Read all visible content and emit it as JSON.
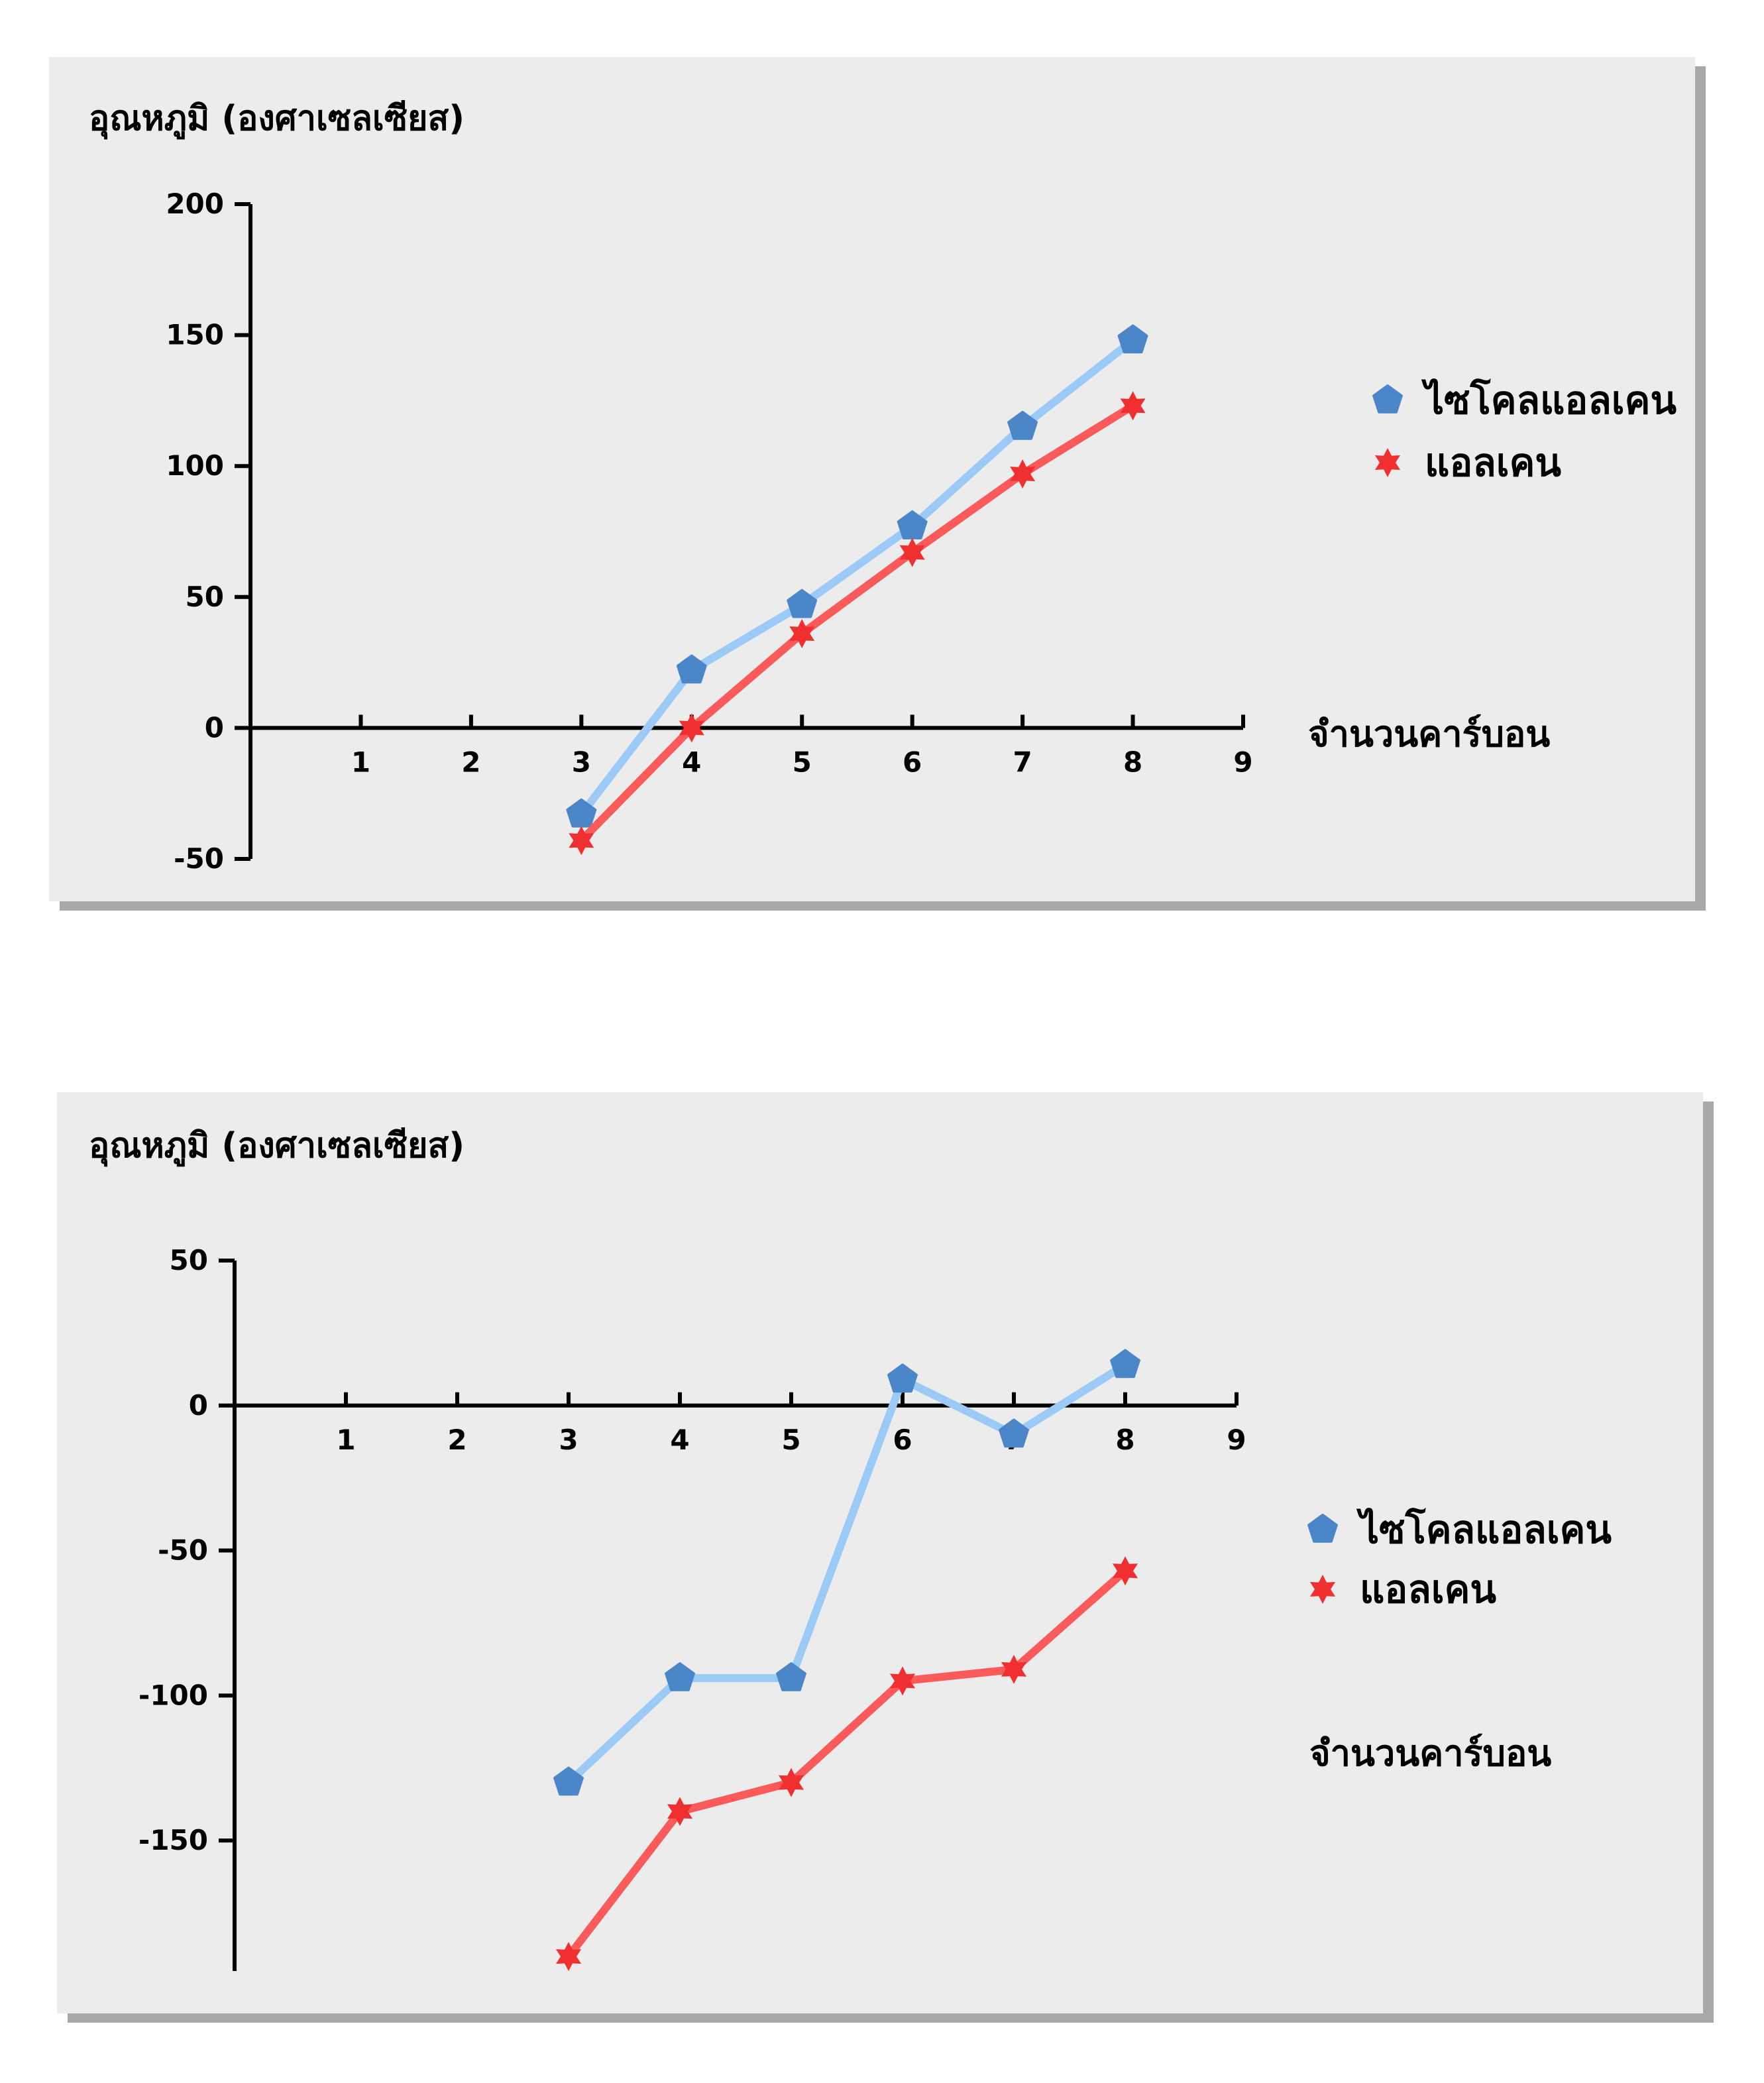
{
  "colors": {
    "panel_bg": "#ececec",
    "shadow": "#a9a9a9",
    "cyclo_line": "#9ccaf7",
    "cyclo_marker": "#4a86c8",
    "alkane_line": "#fa5a5a",
    "alkane_marker": "#f03030"
  },
  "chart_data": [
    {
      "type": "line",
      "ylabel": "อุณหภูมิ (องศาเซลเซียส)",
      "xlabel": "จำนวนคาร์บอน",
      "x_ticks": [
        1,
        2,
        3,
        4,
        5,
        6,
        7,
        8,
        9
      ],
      "y_ticks": [
        -50,
        0,
        50,
        100,
        150,
        200
      ],
      "xlim": [
        0,
        9
      ],
      "ylim": [
        -50,
        200
      ],
      "legend_position": "right",
      "series": [
        {
          "name": "ไซโคลแอลเคน",
          "marker": "pentagon-icon",
          "x": [
            3,
            4,
            5,
            6,
            7,
            8
          ],
          "y": [
            -33,
            22,
            47,
            77,
            115,
            148
          ]
        },
        {
          "name": "แอลเคน",
          "marker": "star-icon",
          "x": [
            3,
            4,
            5,
            6,
            7,
            8
          ],
          "y": [
            -43,
            0,
            36,
            67,
            97,
            123
          ]
        }
      ]
    },
    {
      "type": "line",
      "ylabel": "อุณหภูมิ (องศาเซลเซียส)",
      "xlabel": "จำนวนคาร์บอน",
      "x_ticks": [
        1,
        2,
        3,
        4,
        5,
        6,
        7,
        8,
        9
      ],
      "y_ticks": [
        -150,
        -100,
        -50,
        0,
        50
      ],
      "xlim": [
        0,
        9
      ],
      "ylim": [
        -195,
        50
      ],
      "legend_position": "right",
      "series": [
        {
          "name": "ไซโคลแอลเคน",
          "marker": "pentagon-icon",
          "x": [
            3,
            4,
            5,
            6,
            7,
            8
          ],
          "y": [
            -130,
            -94,
            -94,
            9,
            -10,
            14
          ]
        },
        {
          "name": "แอลเคน",
          "marker": "star-icon",
          "x": [
            3,
            4,
            5,
            6,
            7,
            8
          ],
          "y": [
            -190,
            -140,
            -130,
            -95,
            -91,
            -57
          ]
        }
      ]
    }
  ]
}
